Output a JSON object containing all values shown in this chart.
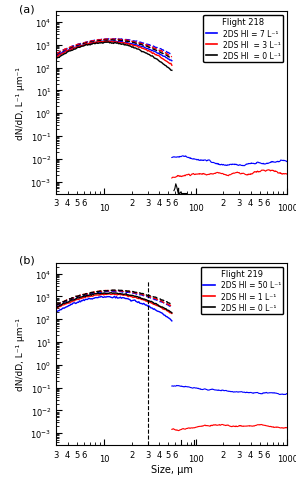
{
  "panel_a": {
    "title": "Flight 218",
    "legend": [
      {
        "label": "2DS HI = 7 L⁻¹",
        "color": "blue"
      },
      {
        "label": "2DS HI  = 3 L⁻¹",
        "color": "red"
      },
      {
        "label": "2DS HI  = 0 L⁻¹",
        "color": "black"
      }
    ]
  },
  "panel_b": {
    "title": "Flight 219",
    "legend": [
      {
        "label": "2DS HI = 50 L⁻¹",
        "color": "blue"
      },
      {
        "label": "2DS HI = 1 L⁻¹",
        "color": "red"
      },
      {
        "label": "2DS HI = 0 L⁻¹",
        "color": "black"
      }
    ]
  },
  "ylabel": "dN/dD, L⁻¹ µm⁻¹",
  "xlabel": "Size, µm",
  "ylim": [
    0.0003,
    30000.0
  ],
  "xlim": [
    3,
    1000
  ],
  "label_a": "(a)",
  "label_b": "(b)"
}
